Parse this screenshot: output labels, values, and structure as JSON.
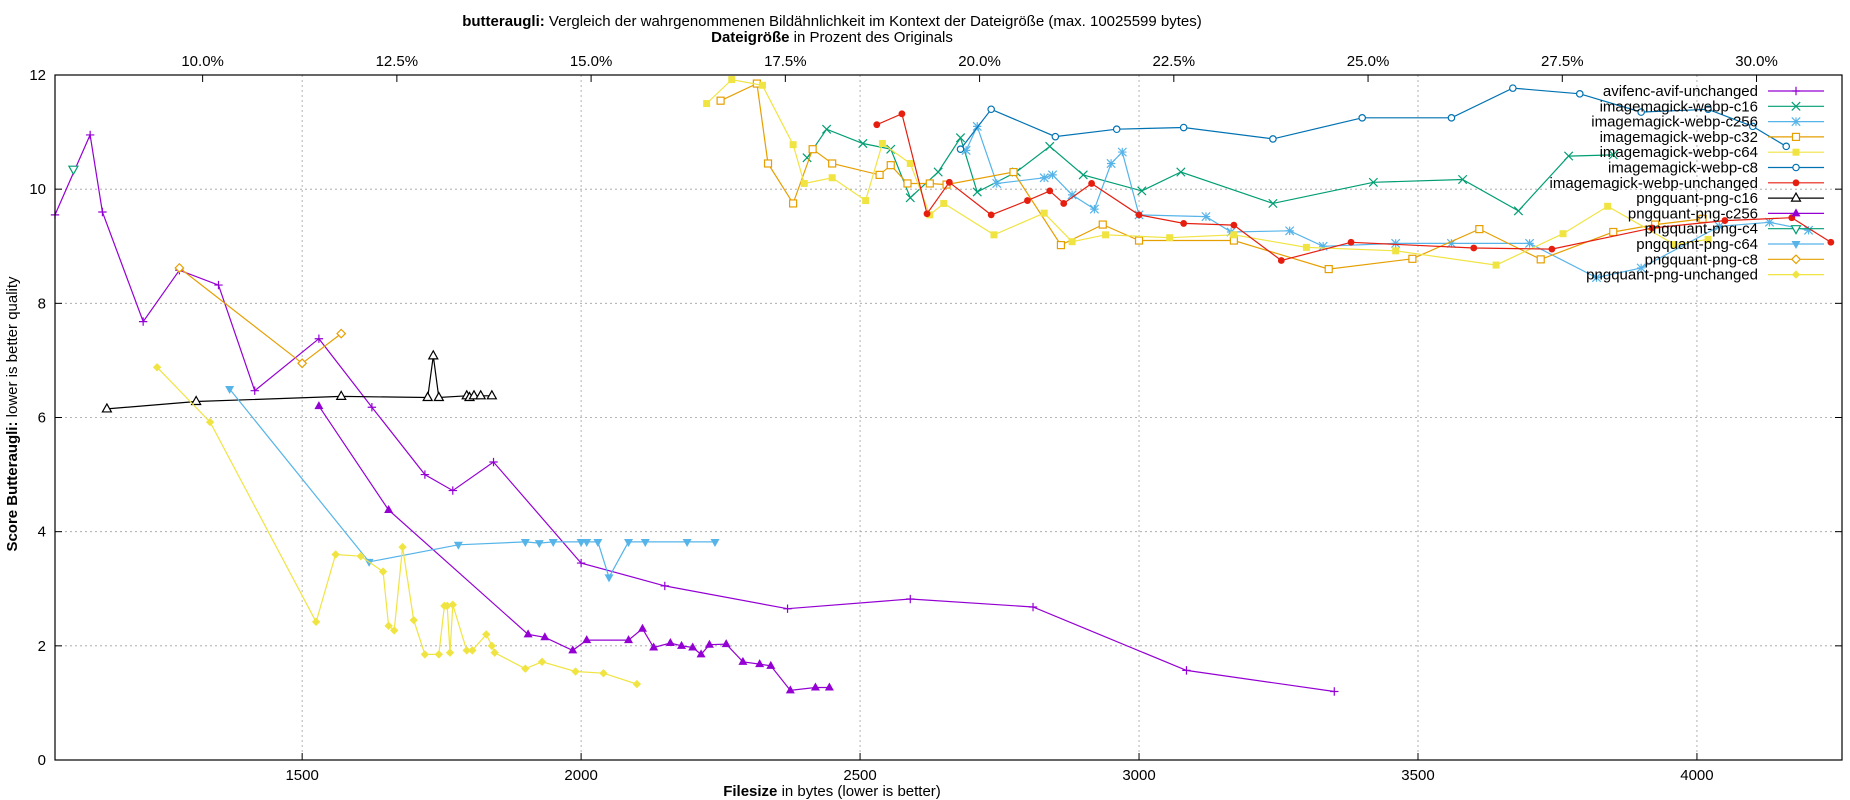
{
  "chart_data": {
    "type": "line",
    "title_bold": "butteraugli:",
    "title_rest": " Vergleich der wahrgenommenen Bildähnlichkeit im Kontext der Dateigröße (max. 10025599 bytes)",
    "x2label_bold": "Dateigröße",
    "x2label_rest": " in Prozent des Originals",
    "xlabel_bold": "Filesize",
    "xlabel_rest": " in bytes (lower is better)",
    "ylabel_bold": "Score Butteraugli:",
    "ylabel_rest": " lower is better quality",
    "xlim": [
      1057,
      4260
    ],
    "ylim": [
      0,
      12
    ],
    "xticks": [
      1500,
      2000,
      2500,
      3000,
      3500,
      4000
    ],
    "yticks": [
      0,
      2,
      4,
      6,
      8,
      10,
      12
    ],
    "x2lim": [
      8.1,
      31.1
    ],
    "x2ticks": [
      "10.0%",
      "12.5%",
      "15.0%",
      "17.5%",
      "20.0%",
      "22.5%",
      "25.0%",
      "27.5%",
      "30.0%"
    ],
    "x2tick_values": [
      10.0,
      12.5,
      15.0,
      17.5,
      20.0,
      22.5,
      25.0,
      27.5,
      30.0
    ],
    "grid": true,
    "legend_position": "top-right",
    "series": [
      {
        "name": "avifenc-avif-unchanged",
        "color": "#9400d3",
        "marker": "plus",
        "points": [
          [
            1057,
            9.55
          ],
          [
            1120,
            10.95
          ],
          [
            1142,
            9.6
          ],
          [
            1215,
            7.68
          ],
          [
            1280,
            8.58
          ],
          [
            1350,
            8.32
          ],
          [
            1415,
            6.47
          ],
          [
            1530,
            7.38
          ],
          [
            1625,
            6.18
          ],
          [
            1720,
            5.0
          ],
          [
            1770,
            4.72
          ],
          [
            1843,
            5.22
          ],
          [
            2000,
            3.45
          ],
          [
            2150,
            3.05
          ],
          [
            2370,
            2.65
          ],
          [
            2590,
            2.82
          ],
          [
            2810,
            2.68
          ],
          [
            3085,
            1.57
          ],
          [
            3350,
            1.2
          ]
        ]
      },
      {
        "name": "imagemagick-webp-c16",
        "color": "#009e73",
        "marker": "x",
        "points": [
          [
            2405,
            10.55
          ],
          [
            2440,
            11.05
          ],
          [
            2505,
            10.8
          ],
          [
            2555,
            10.7
          ],
          [
            2590,
            9.85
          ],
          [
            2640,
            10.3
          ],
          [
            2680,
            10.9
          ],
          [
            2710,
            9.95
          ],
          [
            2780,
            10.3
          ],
          [
            2840,
            10.75
          ],
          [
            2900,
            10.25
          ],
          [
            3005,
            9.97
          ],
          [
            3075,
            10.3
          ],
          [
            3240,
            9.75
          ],
          [
            3420,
            10.12
          ],
          [
            3580,
            10.17
          ],
          [
            3680,
            9.62
          ],
          [
            3770,
            10.58
          ],
          [
            3850,
            10.6
          ]
        ]
      },
      {
        "name": "imagemagick-webp-c256",
        "color": "#56b4e9",
        "marker": "star",
        "points": [
          [
            2690,
            10.68
          ],
          [
            2710,
            11.1
          ],
          [
            2745,
            10.1
          ],
          [
            2830,
            10.2
          ],
          [
            2845,
            10.25
          ],
          [
            2880,
            9.9
          ],
          [
            2920,
            9.65
          ],
          [
            2950,
            10.45
          ],
          [
            2970,
            10.65
          ],
          [
            3000,
            9.55
          ],
          [
            3120,
            9.52
          ],
          [
            3165,
            9.25
          ],
          [
            3270,
            9.27
          ],
          [
            3330,
            9.0
          ],
          [
            3460,
            9.05
          ],
          [
            3560,
            9.05
          ],
          [
            3700,
            9.05
          ],
          [
            3820,
            8.45
          ],
          [
            3900,
            8.62
          ],
          [
            4040,
            9.35
          ],
          [
            4130,
            9.42
          ],
          [
            4200,
            9.28
          ]
        ]
      },
      {
        "name": "imagemagick-webp-c32",
        "color": "#e69f00",
        "marker": "square-open",
        "points": [
          [
            2250,
            11.55
          ],
          [
            2315,
            11.85
          ],
          [
            2335,
            10.45
          ],
          [
            2380,
            9.75
          ],
          [
            2415,
            10.7
          ],
          [
            2450,
            10.45
          ],
          [
            2535,
            10.25
          ],
          [
            2555,
            10.42
          ],
          [
            2585,
            10.1
          ],
          [
            2625,
            10.1
          ],
          [
            2655,
            10.08
          ],
          [
            2775,
            10.3
          ],
          [
            2860,
            9.02
          ],
          [
            2935,
            9.38
          ],
          [
            3000,
            9.1
          ],
          [
            3170,
            9.1
          ],
          [
            3340,
            8.6
          ],
          [
            3490,
            8.78
          ],
          [
            3610,
            9.3
          ],
          [
            3720,
            8.77
          ],
          [
            3850,
            9.25
          ],
          [
            3925,
            9.38
          ],
          [
            4010,
            9.48
          ]
        ]
      },
      {
        "name": "imagemagick-webp-c64",
        "color": "#f0e442",
        "marker": "square-filled",
        "points": [
          [
            2225,
            11.5
          ],
          [
            2270,
            11.92
          ],
          [
            2325,
            11.82
          ],
          [
            2380,
            10.78
          ],
          [
            2400,
            10.1
          ],
          [
            2450,
            10.2
          ],
          [
            2510,
            9.8
          ],
          [
            2540,
            10.8
          ],
          [
            2590,
            10.45
          ],
          [
            2625,
            9.55
          ],
          [
            2650,
            9.75
          ],
          [
            2740,
            9.2
          ],
          [
            2830,
            9.58
          ],
          [
            2880,
            9.08
          ],
          [
            2940,
            9.2
          ],
          [
            3055,
            9.15
          ],
          [
            3170,
            9.2
          ],
          [
            3300,
            8.98
          ],
          [
            3460,
            8.92
          ],
          [
            3640,
            8.67
          ],
          [
            3760,
            9.22
          ],
          [
            3840,
            9.7
          ],
          [
            3960,
            9.03
          ],
          [
            4020,
            9.12
          ]
        ]
      },
      {
        "name": "imagemagick-webp-c8",
        "color": "#0072b2",
        "marker": "circle-open",
        "points": [
          [
            2680,
            10.7
          ],
          [
            2735,
            11.4
          ],
          [
            2850,
            10.92
          ],
          [
            2960,
            11.05
          ],
          [
            3080,
            11.08
          ],
          [
            3240,
            10.88
          ],
          [
            3400,
            11.25
          ],
          [
            3560,
            11.25
          ],
          [
            3670,
            11.77
          ],
          [
            3790,
            11.67
          ],
          [
            3900,
            11.35
          ],
          [
            4020,
            11.4
          ],
          [
            4100,
            11.1
          ],
          [
            4160,
            10.75
          ]
        ]
      },
      {
        "name": "imagemagick-webp-unchanged",
        "color": "#e51e10",
        "marker": "circle-filled",
        "points": [
          [
            2530,
            11.13
          ],
          [
            2575,
            11.32
          ],
          [
            2620,
            9.57
          ],
          [
            2660,
            10.12
          ],
          [
            2735,
            9.55
          ],
          [
            2800,
            9.8
          ],
          [
            2840,
            9.97
          ],
          [
            2865,
            9.75
          ],
          [
            2915,
            10.1
          ],
          [
            3000,
            9.55
          ],
          [
            3080,
            9.4
          ],
          [
            3170,
            9.37
          ],
          [
            3255,
            8.75
          ],
          [
            3380,
            9.07
          ],
          [
            3600,
            8.97
          ],
          [
            3740,
            8.95
          ],
          [
            3920,
            9.32
          ],
          [
            4050,
            9.45
          ],
          [
            4170,
            9.5
          ],
          [
            4240,
            9.07
          ]
        ]
      },
      {
        "name": "pngquant-png-c16",
        "color": "#000000",
        "marker": "triangle-up-open",
        "points": [
          [
            1150,
            6.15
          ],
          [
            1310,
            6.28
          ],
          [
            1570,
            6.37
          ],
          [
            1725,
            6.35
          ],
          [
            1735,
            7.08
          ],
          [
            1745,
            6.35
          ],
          [
            1795,
            6.38
          ],
          [
            1800,
            6.35
          ],
          [
            1808,
            6.38
          ],
          [
            1820,
            6.38
          ],
          [
            1840,
            6.38
          ]
        ]
      },
      {
        "name": "pngquant-png-c256",
        "color": "#9400d3",
        "marker": "triangle-up-filled",
        "points": [
          [
            1530,
            6.2
          ],
          [
            1655,
            4.38
          ],
          [
            1905,
            2.2
          ],
          [
            1935,
            2.15
          ],
          [
            1985,
            1.92
          ],
          [
            2010,
            2.1
          ],
          [
            2085,
            2.1
          ],
          [
            2110,
            2.3
          ],
          [
            2130,
            1.97
          ],
          [
            2160,
            2.05
          ],
          [
            2180,
            2.0
          ],
          [
            2200,
            1.97
          ],
          [
            2215,
            1.85
          ],
          [
            2230,
            2.02
          ],
          [
            2260,
            2.03
          ],
          [
            2290,
            1.72
          ],
          [
            2320,
            1.68
          ],
          [
            2340,
            1.65
          ],
          [
            2375,
            1.22
          ],
          [
            2420,
            1.27
          ],
          [
            2445,
            1.27
          ]
        ]
      },
      {
        "name": "pngquant-png-c4",
        "color": "#009e73",
        "marker": "triangle-down-open",
        "points": [
          [
            1090,
            10.35
          ]
        ]
      },
      {
        "name": "pngquant-png-c64",
        "color": "#56b4e9",
        "marker": "triangle-down-filled",
        "points": [
          [
            1370,
            6.5
          ],
          [
            1620,
            3.47
          ],
          [
            1780,
            3.77
          ],
          [
            1900,
            3.82
          ],
          [
            1925,
            3.8
          ],
          [
            1950,
            3.82
          ],
          [
            2000,
            3.82
          ],
          [
            2010,
            3.82
          ],
          [
            2030,
            3.82
          ],
          [
            2050,
            3.2
          ],
          [
            2085,
            3.82
          ],
          [
            2115,
            3.82
          ],
          [
            2190,
            3.82
          ],
          [
            2240,
            3.82
          ]
        ]
      },
      {
        "name": "pngquant-png-c8",
        "color": "#e69f00",
        "marker": "diamond-open",
        "points": [
          [
            1280,
            8.62
          ],
          [
            1500,
            6.95
          ],
          [
            1570,
            7.47
          ]
        ]
      },
      {
        "name": "pngquant-png-unchanged",
        "color": "#f0e442",
        "marker": "diamond-filled",
        "points": [
          [
            1240,
            6.88
          ],
          [
            1335,
            5.92
          ],
          [
            1525,
            2.42
          ],
          [
            1560,
            3.6
          ],
          [
            1605,
            3.57
          ],
          [
            1645,
            3.3
          ],
          [
            1655,
            2.35
          ],
          [
            1665,
            2.27
          ],
          [
            1680,
            3.73
          ],
          [
            1700,
            2.45
          ],
          [
            1720,
            1.85
          ],
          [
            1745,
            1.85
          ],
          [
            1755,
            2.7
          ],
          [
            1760,
            2.7
          ],
          [
            1765,
            1.88
          ],
          [
            1770,
            2.72
          ],
          [
            1795,
            1.92
          ],
          [
            1805,
            1.92
          ],
          [
            1830,
            2.2
          ],
          [
            1840,
            2.0
          ],
          [
            1845,
            1.88
          ],
          [
            1900,
            1.6
          ],
          [
            1930,
            1.72
          ],
          [
            1990,
            1.55
          ],
          [
            2040,
            1.52
          ],
          [
            2100,
            1.33
          ]
        ]
      }
    ]
  }
}
